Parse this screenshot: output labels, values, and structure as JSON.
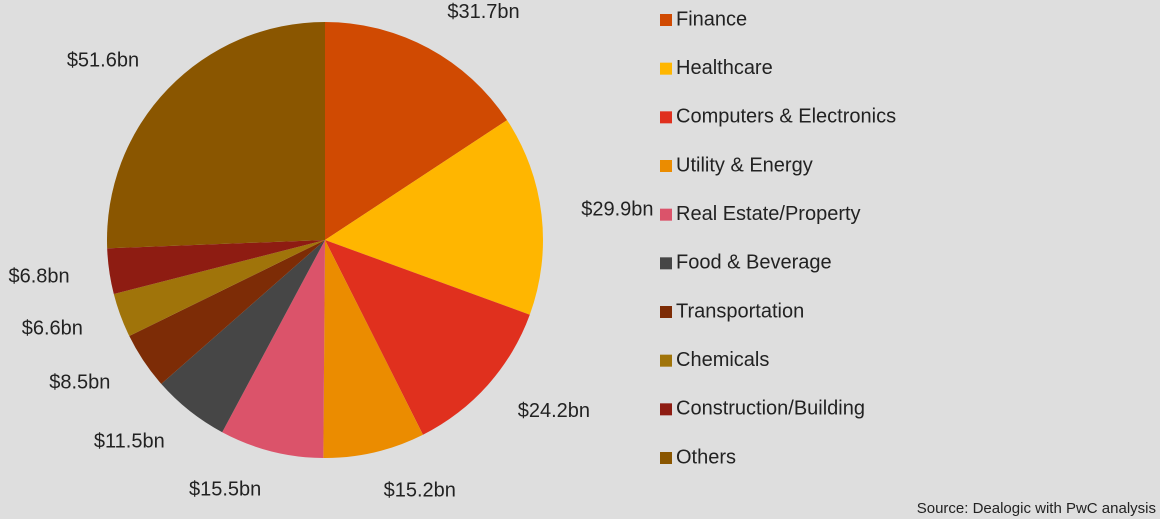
{
  "chart_data": {
    "type": "pie",
    "categories": [
      "Finance",
      "Healthcare",
      "Computers & Electronics",
      "Utility & Energy",
      "Real Estate/Property",
      "Food & Beverage",
      "Transportation",
      "Chemicals",
      "Construction/Building",
      "Others"
    ],
    "values": [
      31.7,
      29.9,
      24.2,
      15.2,
      15.5,
      11.5,
      8.5,
      6.6,
      6.8,
      51.6
    ],
    "value_labels": [
      "$31.7bn",
      "$29.9bn",
      "$24.2bn",
      "$15.2bn",
      "$15.5bn",
      "$11.5bn",
      "$8.5bn",
      "$6.6bn",
      "$6.8bn",
      "$51.6bn"
    ],
    "colors": [
      "#d04a02",
      "#ffb600",
      "#e0301e",
      "#eb8c00",
      "#db536a",
      "#464646",
      "#7d2c06",
      "#a0740a",
      "#8e1c12",
      "#8a5600"
    ],
    "legend": "right",
    "source": "Source: Dealogic with PwC analysis"
  }
}
